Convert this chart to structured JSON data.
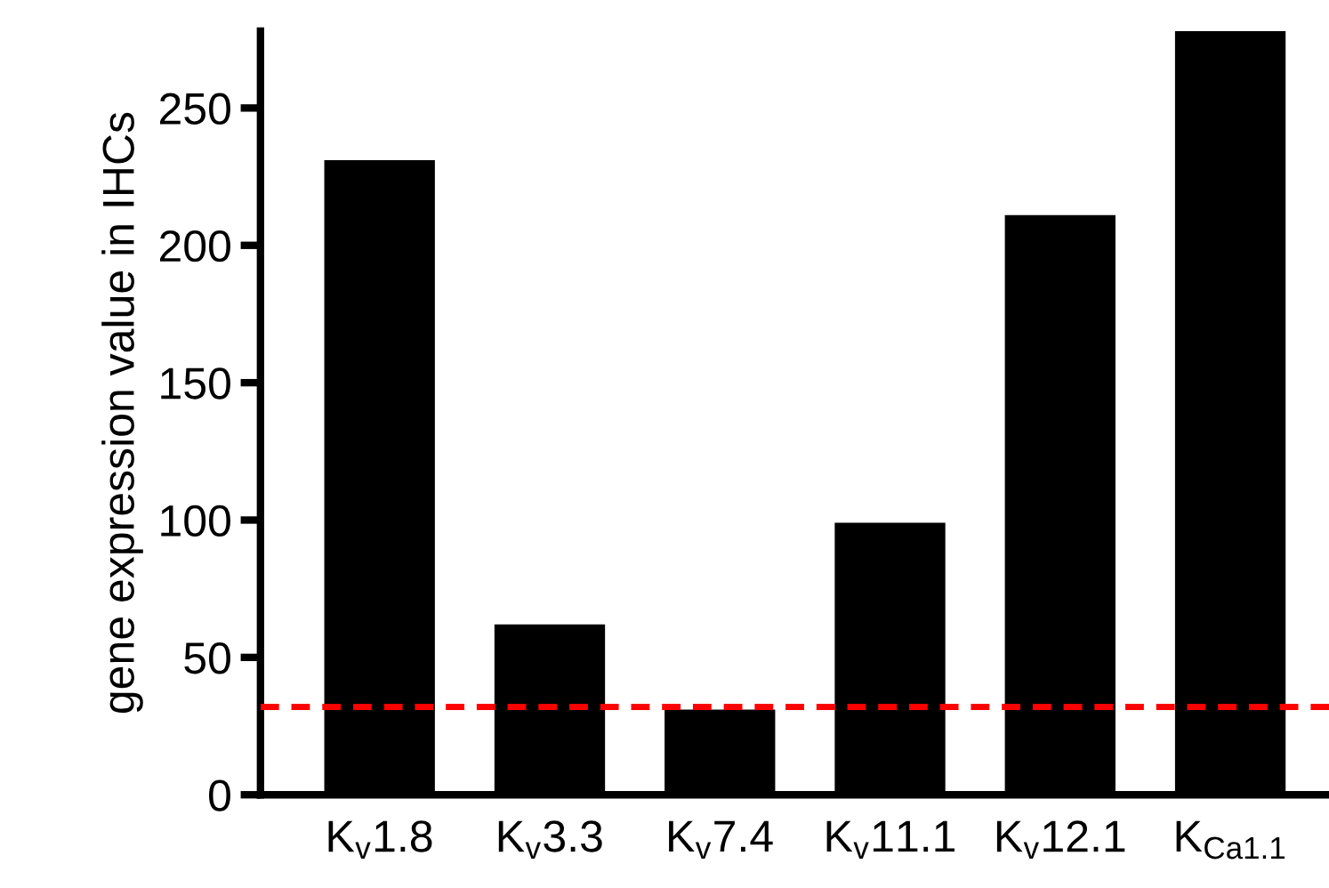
{
  "chart_data": {
    "type": "bar",
    "ylabel": "gene expression value in IHCs",
    "categories": [
      "K$_{v}$1.8",
      "K$_{v}$3.3",
      "K$_{v}$7.4",
      "K$_{v}$11.1",
      "K$_{v}$12.1",
      "K$_{Ca1.1}$"
    ],
    "values": [
      231,
      62,
      31,
      99,
      211,
      278
    ],
    "color": "#000000",
    "ylim": [
      0,
      278
    ],
    "yticks": [
      0,
      50,
      100,
      150,
      200,
      250
    ],
    "grid": false,
    "ref_lines": [
      {
        "axis": "y",
        "value": 32,
        "color": "#ff0000",
        "line_style": "dashed"
      }
    ]
  }
}
